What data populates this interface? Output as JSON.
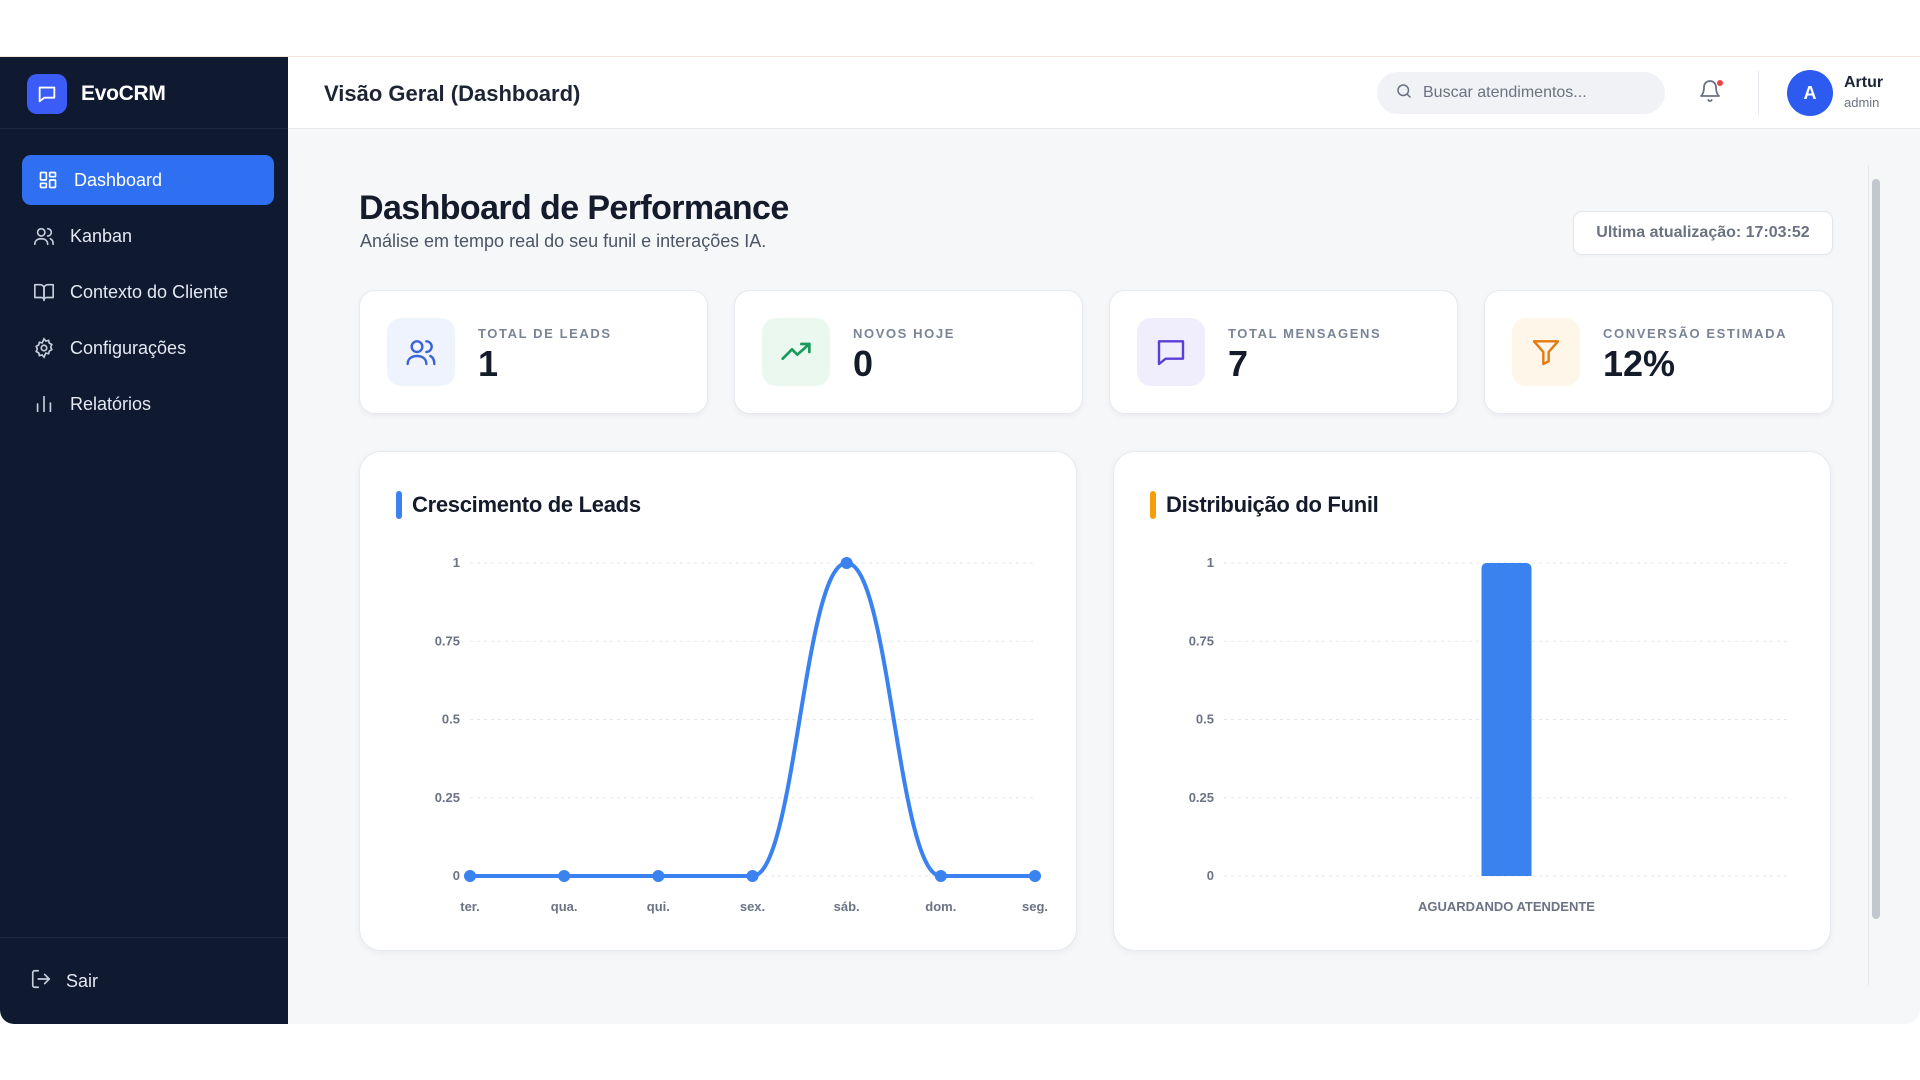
{
  "app": {
    "name": "EvoCRM"
  },
  "sidebar": {
    "items": [
      {
        "label": "Dashboard",
        "icon": "grid-icon",
        "active": true
      },
      {
        "label": "Kanban",
        "icon": "users-icon",
        "active": false
      },
      {
        "label": "Contexto do Cliente",
        "icon": "book-icon",
        "active": false
      },
      {
        "label": "Configurações",
        "icon": "gear-icon",
        "active": false
      },
      {
        "label": "Relatórios",
        "icon": "bar-chart-icon",
        "active": false
      }
    ],
    "logout_label": "Sair"
  },
  "header": {
    "title": "Visão Geral (Dashboard)",
    "search_placeholder": "Buscar atendimentos...",
    "user": {
      "initial": "A",
      "name": "Artur",
      "role": "admin"
    }
  },
  "page": {
    "title": "Dashboard de Performance",
    "subtitle": "Análise em tempo real do seu funil e interações IA.",
    "updated_label": "Ultima atualização: 17:03:52"
  },
  "stats": [
    {
      "label": "TOTAL DE LEADS",
      "value": "1",
      "icon": "users-icon",
      "color": "#3b63d6",
      "bg": "#eef3fe"
    },
    {
      "label": "NOVOS HOJE",
      "value": "0",
      "icon": "trending-up-icon",
      "color": "#1a9a5a",
      "bg": "#eaf8f0"
    },
    {
      "label": "TOTAL MENSAGENS",
      "value": "7",
      "icon": "message-icon",
      "color": "#5b3fd6",
      "bg": "#f0edfd"
    },
    {
      "label": "CONVERSÃO ESTIMADA",
      "value": "12%",
      "icon": "filter-icon",
      "color": "#e27a12",
      "bg": "#fef6e9"
    }
  ],
  "colors": {
    "accent": "#2f6ff2",
    "series": "#3a82f0",
    "funnel_accent": "#f59e0b",
    "leads_accent": "#3a82f0"
  },
  "chart_data": [
    {
      "type": "line",
      "title": "Crescimento de Leads",
      "categories": [
        "ter.",
        "qua.",
        "qui.",
        "sex.",
        "sáb.",
        "dom.",
        "seg."
      ],
      "values": [
        0,
        0,
        0,
        0,
        1,
        0,
        0
      ],
      "yticks": [
        "0",
        "0.25",
        "0.5",
        "0.75",
        "1"
      ],
      "ylim": [
        0,
        1
      ],
      "grid": true
    },
    {
      "type": "bar",
      "title": "Distribuição do Funil",
      "categories": [
        "AGUARDANDO ATENDENTE"
      ],
      "values": [
        1
      ],
      "yticks": [
        "0",
        "0.25",
        "0.5",
        "0.75",
        "1"
      ],
      "ylim": [
        0,
        1
      ],
      "grid": true
    }
  ]
}
